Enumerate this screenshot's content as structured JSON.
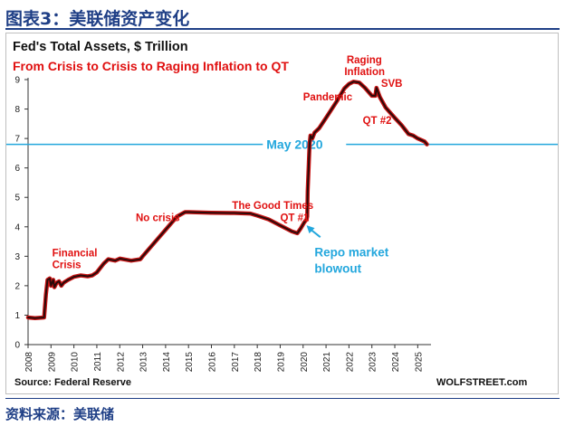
{
  "figure": {
    "title": "图表3：美联储资产变化",
    "footer": "资料来源：美联储"
  },
  "colors": {
    "header_blue": "#1f3f86",
    "line_dark": "#2a0a0a",
    "line_red": "#c81414",
    "annotation_red": "#e01010",
    "reference_blue": "#23a7dd",
    "title_black": "#111111"
  },
  "chart_data": {
    "type": "line",
    "title": "Fed's Total Assets, $ Trillion",
    "subtitle": "From Crisis to Crisis to Raging Inflation to QT",
    "xlabel": "",
    "ylabel": "",
    "xlim": [
      2008,
      2025.5
    ],
    "ylim": [
      0,
      9
    ],
    "x_ticks": [
      "2008",
      "2009",
      "2010",
      "2011",
      "2012",
      "2013",
      "2014",
      "2015",
      "2016",
      "2017",
      "2018",
      "2019",
      "2020",
      "2021",
      "2022",
      "2023",
      "2024",
      "2025"
    ],
    "y_ticks": [
      "0",
      "1",
      "2",
      "3",
      "4",
      "5",
      "6",
      "7",
      "8",
      "9"
    ],
    "grid": false,
    "legend": "none",
    "source": "Source: Federal Reserve",
    "credit": "WOLFSTREET.com",
    "series": [
      {
        "x": [
          2008.0,
          2008.3,
          2008.7,
          2008.78,
          2008.85,
          2008.95,
          2009.0,
          2009.1,
          2009.15,
          2009.25,
          2009.35,
          2009.45,
          2009.55,
          2009.75,
          2010.0,
          2010.3,
          2010.6,
          2010.8,
          2011.0,
          2011.3,
          2011.5,
          2011.8,
          2012.0,
          2012.5,
          2012.9,
          2013.0,
          2013.5,
          2014.0,
          2014.5,
          2014.85,
          2015.0,
          2016.0,
          2017.0,
          2017.7,
          2018.0,
          2018.5,
          2019.0,
          2019.5,
          2019.75,
          2019.9,
          2020.05,
          2020.15,
          2020.18,
          2020.2,
          2020.25,
          2020.28,
          2020.32,
          2020.4,
          2020.5,
          2020.7,
          2021.0,
          2021.5,
          2021.8,
          2022.0,
          2022.2,
          2022.45,
          2022.7,
          2023.0,
          2023.15,
          2023.2,
          2023.35,
          2023.6,
          2024.0,
          2024.3,
          2024.6,
          2024.8,
          2025.0,
          2025.3,
          2025.4
        ],
        "values": [
          0.92,
          0.9,
          0.92,
          1.7,
          2.2,
          2.25,
          2.0,
          2.2,
          1.95,
          2.1,
          2.15,
          2.0,
          2.1,
          2.2,
          2.3,
          2.35,
          2.32,
          2.35,
          2.45,
          2.75,
          2.9,
          2.85,
          2.92,
          2.85,
          2.9,
          3.0,
          3.45,
          3.9,
          4.35,
          4.5,
          4.5,
          4.48,
          4.47,
          4.45,
          4.38,
          4.25,
          4.05,
          3.85,
          3.78,
          3.95,
          4.15,
          4.25,
          4.35,
          5.2,
          6.2,
          6.8,
          7.1,
          7.0,
          7.2,
          7.35,
          7.7,
          8.3,
          8.7,
          8.85,
          8.93,
          8.9,
          8.72,
          8.45,
          8.45,
          8.72,
          8.4,
          8.05,
          7.7,
          7.45,
          7.15,
          7.1,
          7.0,
          6.9,
          6.8
        ]
      }
    ],
    "reference_line": {
      "y": 6.8,
      "label": "May 2020"
    },
    "annotations": [
      {
        "text": "Financial",
        "x": 2009.05,
        "y": 3.0
      },
      {
        "text": "Crisis",
        "x": 2009.05,
        "y": 2.6
      },
      {
        "text": "No crisis",
        "x": 2012.7,
        "y": 4.2
      },
      {
        "text": "The Good Times",
        "x": 2016.9,
        "y": 4.6
      },
      {
        "text": "QT #1",
        "x": 2019.0,
        "y": 4.2
      },
      {
        "text": "Pandemic",
        "x": 2020.0,
        "y": 8.3
      },
      {
        "text": "Raging",
        "x": 2021.9,
        "y": 9.55
      },
      {
        "text": "Inflation",
        "x": 2021.8,
        "y": 9.15
      },
      {
        "text": "SVB",
        "x": 2023.4,
        "y": 8.75
      },
      {
        "text": "QT #2",
        "x": 2022.6,
        "y": 7.5
      }
    ],
    "callout": {
      "lines": [
        "Repo market",
        "blowout"
      ],
      "x": 2020.5,
      "y": 3.0,
      "arrow_from": [
        2020.75,
        3.65
      ],
      "arrow_to": [
        2020.15,
        4.05
      ]
    }
  }
}
